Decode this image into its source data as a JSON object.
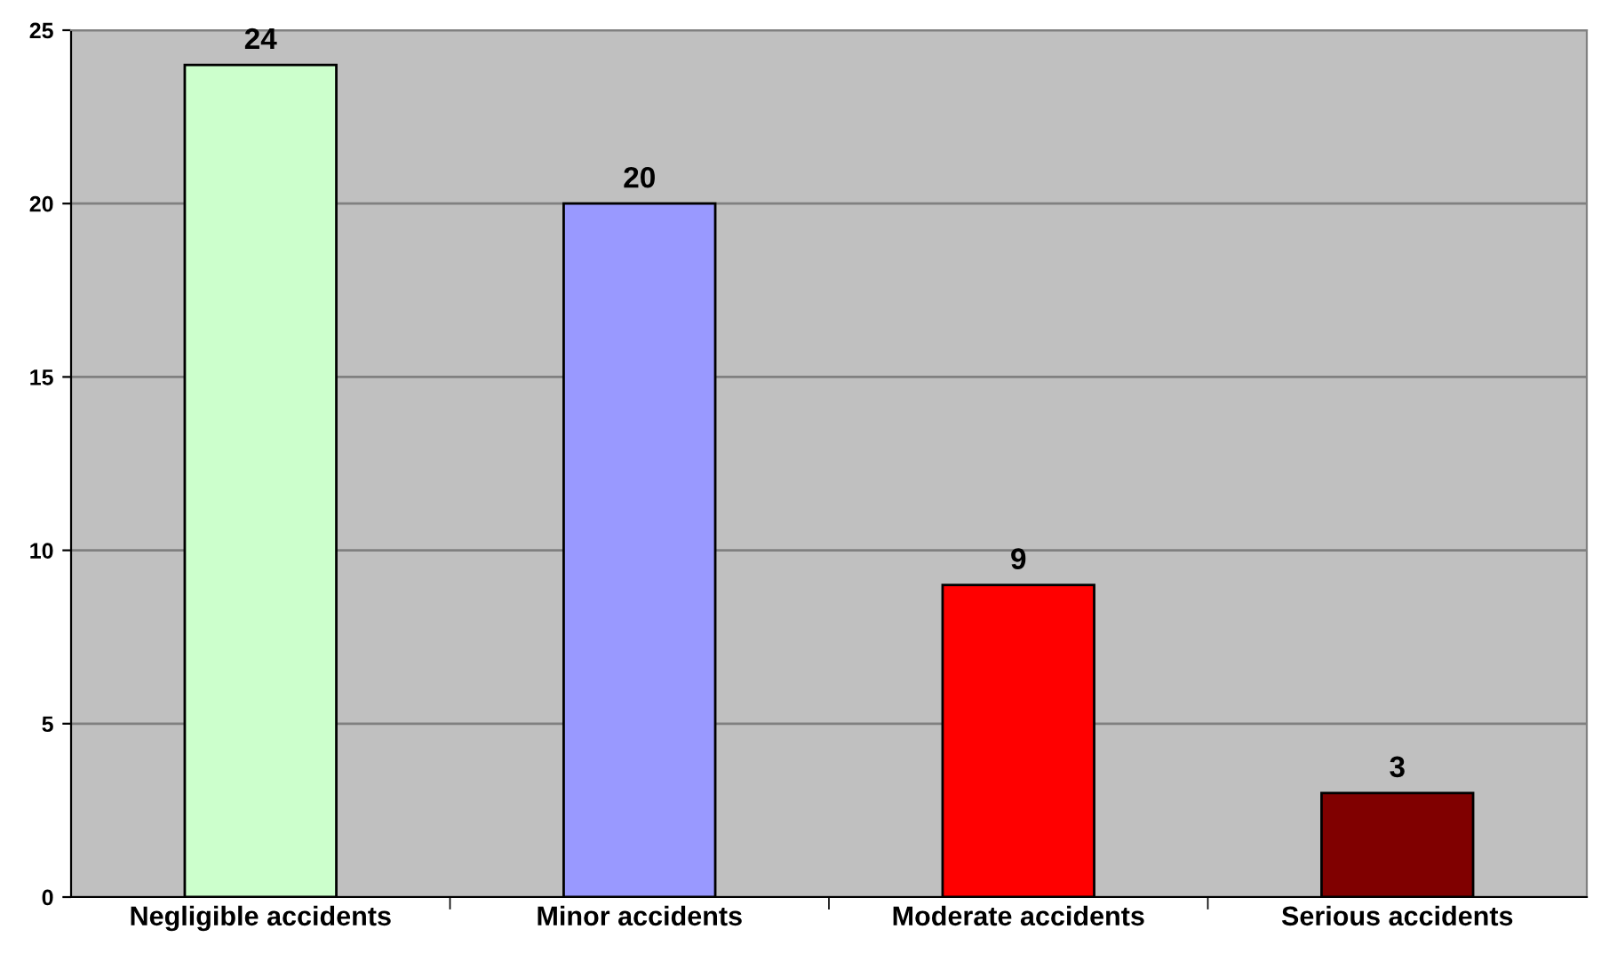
{
  "chart_data": {
    "type": "bar",
    "categories": [
      "Negligible accidents",
      "Minor accidents",
      "Moderate accidents",
      "Serious accidents"
    ],
    "values": [
      24,
      20,
      9,
      3
    ],
    "colors": [
      "#ccffcc",
      "#9999ff",
      "#ff0000",
      "#800000"
    ],
    "ylim": [
      0,
      25
    ],
    "yticks": [
      0,
      5,
      10,
      15,
      20,
      25
    ],
    "grid": "y",
    "data_labels": true
  }
}
